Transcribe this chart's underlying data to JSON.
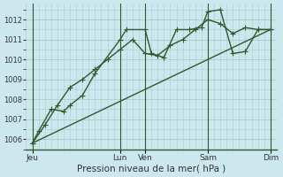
{
  "xlabel": "Pression niveau de la mer( hPa )",
  "background_color": "#cce8ee",
  "grid_color": "#aacccc",
  "line_color": "#2d5a2d",
  "ylim": [
    1005.5,
    1012.8
  ],
  "yticks": [
    1006,
    1007,
    1008,
    1009,
    1010,
    1011,
    1012
  ],
  "xlim": [
    0,
    20
  ],
  "xtick_positions": [
    0.5,
    7.5,
    9.5,
    14.5,
    19.5
  ],
  "xtick_labels": [
    "Jeu",
    "Lun",
    "Ven",
    "Sam",
    "Dim"
  ],
  "vline_positions": [
    0.5,
    7.5,
    9.5,
    14.5,
    19.5
  ],
  "series1_x": [
    0.5,
    1.0,
    2.0,
    3.0,
    3.5,
    4.5,
    5.5,
    7.5,
    8.0,
    9.5,
    10.0,
    11.0,
    12.0,
    13.0,
    14.0,
    14.5,
    15.5,
    16.5,
    17.5,
    18.5,
    19.5
  ],
  "series1_y": [
    1005.8,
    1006.4,
    1007.5,
    1007.4,
    1007.7,
    1008.2,
    1009.3,
    1011.0,
    1011.5,
    1011.5,
    1010.3,
    1010.1,
    1011.5,
    1011.5,
    1011.6,
    1012.4,
    1012.5,
    1010.3,
    1010.4,
    1011.5,
    1011.5
  ],
  "series2_x": [
    0.5,
    1.5,
    2.5,
    3.5,
    4.5,
    5.5,
    6.5,
    7.5,
    8.5,
    9.5,
    10.5,
    11.5,
    12.5,
    13.5,
    14.5,
    15.5,
    16.5,
    17.5,
    18.5,
    19.5
  ],
  "series2_y": [
    1005.8,
    1006.7,
    1007.7,
    1008.6,
    1009.0,
    1009.5,
    1010.0,
    1010.5,
    1011.0,
    1010.3,
    1010.2,
    1010.7,
    1011.0,
    1011.5,
    1012.0,
    1011.8,
    1011.3,
    1011.6,
    1011.5,
    1011.5
  ],
  "series3_x": [
    0.5,
    19.5
  ],
  "series3_y": [
    1005.8,
    1011.5
  ],
  "marker": "+",
  "markersize": 5,
  "linewidth": 1.0
}
